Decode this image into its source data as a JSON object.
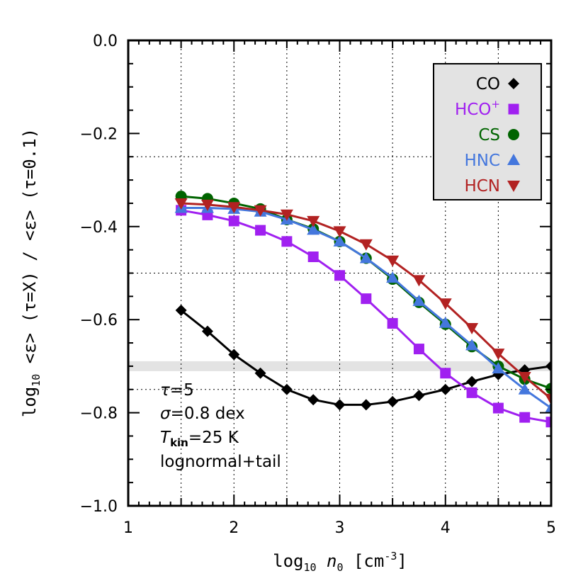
{
  "chart_data": {
    "type": "line",
    "xlabel": {
      "pre": "log",
      "sub": "10",
      "mid": " n",
      "sub2": "0",
      "post1": " [cm",
      "sup": "-3",
      "post2": "]"
    },
    "ylabel": {
      "pre": "log",
      "sub": "10",
      "text": " <ε> (τ=X) / <ε> (τ=0.1)"
    },
    "xlim": [
      1,
      5
    ],
    "ylim": [
      -1.0,
      0.0
    ],
    "xticks": [
      "1",
      "2",
      "3",
      "4",
      "5"
    ],
    "yticks": [
      "0.0",
      "−0.2",
      "−0.4",
      "−0.6",
      "−0.8",
      "−1.0"
    ],
    "grid": true,
    "reference_band": {
      "y": -0.7
    },
    "x": [
      1.5,
      1.75,
      2.0,
      2.25,
      2.5,
      2.75,
      3.0,
      3.25,
      3.5,
      3.75,
      4.0,
      4.25,
      4.5,
      4.75,
      5.0
    ],
    "series": [
      {
        "name": "CO",
        "color": "#000000",
        "marker": "diamond",
        "values": [
          -0.58,
          -0.625,
          -0.675,
          -0.715,
          -0.75,
          -0.772,
          -0.783,
          -0.783,
          -0.776,
          -0.763,
          -0.75,
          -0.733,
          -0.718,
          -0.708,
          -0.7
        ]
      },
      {
        "name": "HCO",
        "sup": "+",
        "color": "#a020f0",
        "marker": "square",
        "values": [
          -0.365,
          -0.375,
          -0.388,
          -0.408,
          -0.432,
          -0.465,
          -0.505,
          -0.555,
          -0.608,
          -0.663,
          -0.715,
          -0.757,
          -0.79,
          -0.81,
          -0.82
        ]
      },
      {
        "name": "CS",
        "color": "#006400",
        "marker": "circle",
        "values": [
          -0.335,
          -0.34,
          -0.35,
          -0.362,
          -0.385,
          -0.405,
          -0.432,
          -0.468,
          -0.513,
          -0.563,
          -0.61,
          -0.658,
          -0.7,
          -0.728,
          -0.748
        ]
      },
      {
        "name": "HNC",
        "color": "#4477dd",
        "marker": "triangle-up",
        "values": [
          -0.36,
          -0.36,
          -0.362,
          -0.368,
          -0.385,
          -0.407,
          -0.432,
          -0.468,
          -0.51,
          -0.56,
          -0.607,
          -0.655,
          -0.705,
          -0.75,
          -0.79
        ]
      },
      {
        "name": "HCN",
        "color": "#b22222",
        "marker": "triangle-down",
        "values": [
          -0.35,
          -0.353,
          -0.358,
          -0.365,
          -0.374,
          -0.388,
          -0.41,
          -0.438,
          -0.473,
          -0.515,
          -0.565,
          -0.618,
          -0.673,
          -0.723,
          -0.77
        ]
      }
    ],
    "annotations": [
      {
        "italic": "τ",
        "rest": "=5"
      },
      {
        "italic": "σ",
        "rest": "=0.8 dex"
      },
      {
        "italic": "T",
        "sub": "kin",
        "rest": "=25 K"
      },
      {
        "italic": "",
        "rest": "lognormal+tail"
      }
    ],
    "legend": {
      "position": "top-right"
    }
  }
}
